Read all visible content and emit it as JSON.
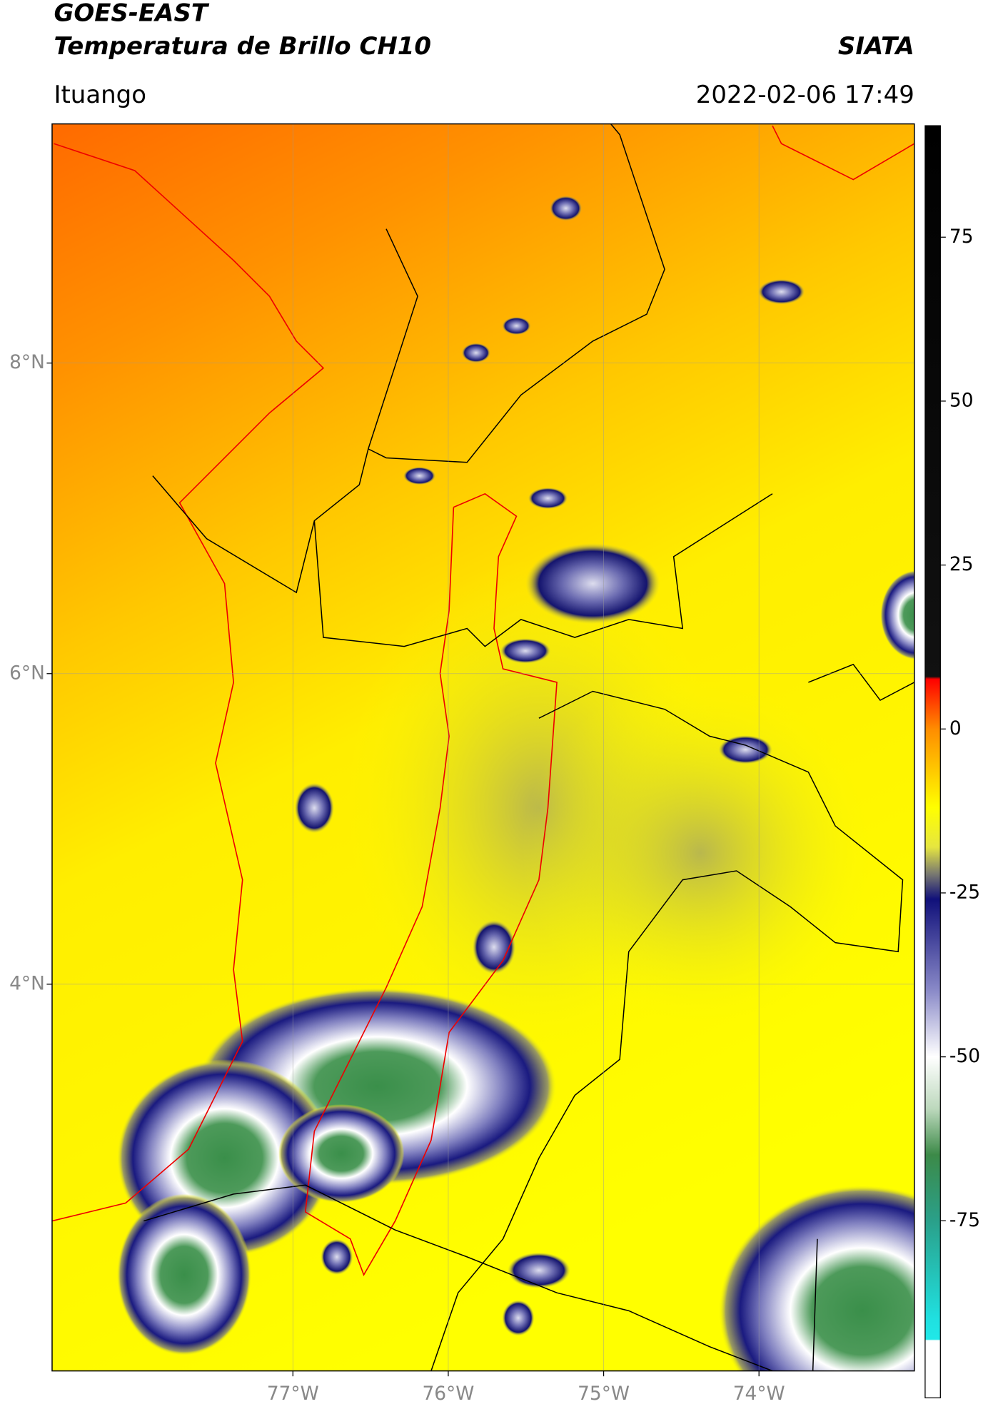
{
  "header": {
    "title": "GOES-EAST",
    "subtitle": "Temperatura de Brillo CH10",
    "brand": "SIATA",
    "location": "Ituango",
    "datetime": "2022-02-06 17:49"
  },
  "map": {
    "lonlim": [
      -78.55,
      -73.0
    ],
    "latlim": [
      1.51,
      9.54
    ],
    "lonticks": [
      {
        "value": -77,
        "label": "77°W"
      },
      {
        "value": -76,
        "label": "76°W"
      },
      {
        "value": -75,
        "label": "75°W"
      },
      {
        "value": -74,
        "label": "74°W"
      }
    ],
    "latticks": [
      {
        "value": 8,
        "label": "8°N"
      },
      {
        "value": 6,
        "label": "6°N"
      },
      {
        "value": 4,
        "label": "4°N"
      }
    ],
    "grid": true
  },
  "colorbar": {
    "lim": [
      -102,
      92
    ],
    "ticks": [
      75,
      50,
      25,
      0,
      -25,
      -50,
      -75
    ]
  }
}
